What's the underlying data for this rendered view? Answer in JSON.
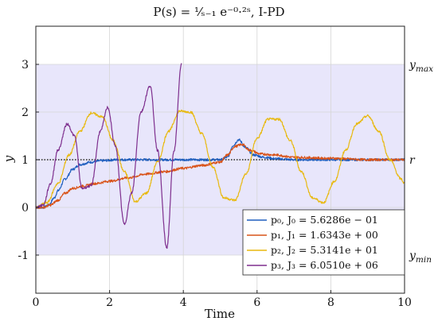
{
  "chart_data": {
    "type": "line",
    "title": "P(s) = ¹⁄ₛ₋₁ e⁻⁰·²ˢ,    I-PD",
    "xlabel": "Time",
    "ylabel": "y",
    "xlim": [
      0,
      10
    ],
    "ylim": [
      -1.8,
      3.8
    ],
    "xticks": [
      0,
      2,
      4,
      6,
      8,
      10
    ],
    "yticks": [
      -1,
      0,
      1,
      2,
      3
    ],
    "grid": true,
    "legend_position": "bottom-right",
    "band": {
      "ymin": -1,
      "ymax": 3,
      "color": "#e8e6fb"
    },
    "reference": {
      "y": 1,
      "label": "r",
      "style": "dotted"
    },
    "right_labels": [
      {
        "y": 3,
        "text": "y_max"
      },
      {
        "y": 1,
        "text": "r"
      },
      {
        "y": -1,
        "text": "y_min"
      }
    ],
    "series": [
      {
        "name": "p₀, J₀ = 5.6286e − 01",
        "color": "#1f5fbf",
        "x": [
          0,
          0.2,
          0.35,
          0.5,
          0.6,
          0.8,
          1.0,
          1.2,
          1.5,
          1.8,
          2.2,
          3.0,
          4.0,
          5.0,
          5.2,
          5.35,
          5.5,
          5.7,
          5.9,
          6.2,
          6.5,
          7.0,
          8.0,
          9.0,
          10.0
        ],
        "y": [
          0,
          0,
          0.05,
          0.2,
          0.35,
          0.6,
          0.8,
          0.9,
          0.95,
          0.98,
          1.0,
          1.0,
          1.0,
          1.0,
          1.05,
          1.3,
          1.42,
          1.25,
          1.1,
          1.05,
          1.02,
          1.0,
          1.0,
          1.0,
          1.0
        ]
      },
      {
        "name": "p₁, J₁ = 1.6343e + 00",
        "color": "#d95319",
        "x": [
          0,
          0.2,
          0.4,
          0.6,
          0.8,
          1.0,
          1.3,
          1.6,
          2.0,
          2.5,
          3.0,
          3.5,
          4.0,
          4.5,
          5.0,
          5.2,
          5.4,
          5.6,
          5.8,
          6.1,
          6.5,
          7.0,
          8.0,
          9.0,
          10.0
        ],
        "y": [
          0,
          0,
          0.05,
          0.15,
          0.3,
          0.4,
          0.45,
          0.5,
          0.55,
          0.62,
          0.7,
          0.75,
          0.82,
          0.88,
          0.95,
          1.1,
          1.28,
          1.32,
          1.2,
          1.12,
          1.1,
          1.05,
          1.03,
          1.0,
          1.0
        ]
      },
      {
        "name": "p₂, J₂ = 5.3141e + 01",
        "color": "#e8b90f",
        "x": [
          0,
          0.3,
          0.6,
          0.9,
          1.2,
          1.5,
          1.8,
          2.1,
          2.4,
          2.7,
          3.0,
          3.3,
          3.6,
          3.9,
          4.2,
          4.5,
          4.8,
          5.1,
          5.4,
          5.7,
          6.0,
          6.3,
          6.6,
          6.9,
          7.2,
          7.5,
          7.8,
          8.1,
          8.4,
          8.7,
          9.0,
          9.3,
          9.6,
          9.9,
          10.0
        ],
        "y": [
          0,
          0.1,
          0.5,
          1.1,
          1.6,
          1.98,
          1.9,
          1.4,
          0.75,
          0.12,
          0.3,
          0.95,
          1.6,
          2.02,
          2.0,
          1.55,
          0.85,
          0.2,
          0.15,
          0.7,
          1.45,
          1.85,
          1.85,
          1.4,
          0.75,
          0.2,
          0.1,
          0.55,
          1.2,
          1.75,
          1.92,
          1.6,
          1.0,
          0.6,
          0.5
        ]
      },
      {
        "name": "p₃, J₃ = 6.0510e + 06",
        "color": "#7e2f8e",
        "x": [
          0,
          0.2,
          0.4,
          0.6,
          0.85,
          1.05,
          1.25,
          1.5,
          1.75,
          1.95,
          2.15,
          2.4,
          2.6,
          2.85,
          3.1,
          3.3,
          3.55,
          3.75,
          3.95
        ],
        "y": [
          0,
          0.05,
          0.5,
          1.2,
          1.75,
          1.5,
          0.4,
          0.45,
          1.6,
          2.1,
          1.3,
          -0.35,
          0.3,
          2.0,
          2.55,
          1.2,
          -0.85,
          1.2,
          3.0
        ]
      }
    ]
  }
}
